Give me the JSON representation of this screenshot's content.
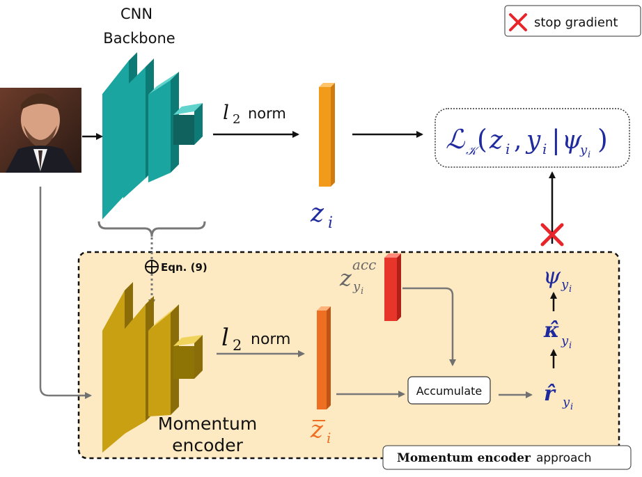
{
  "legend": {
    "label": "stop gradient"
  },
  "cnn": {
    "title_line1": "CNN",
    "title_line2": "Backbone"
  },
  "top_branch": {
    "norm_l": "l",
    "norm_sub": "2",
    "norm_word": "norm",
    "z_main": "z",
    "z_sub": "i"
  },
  "loss": {
    "script_L": "ℒ",
    "script_K": "𝒦",
    "open": "(",
    "z": "z",
    "z_sub": "i",
    "comma": ",",
    "y": "y",
    "y_sub": "i",
    "bar": "|",
    "psi": "ψ",
    "psi_sub_y": "y",
    "psi_sub_i": "i",
    "close": ")"
  },
  "eqn": {
    "label": "Eqn. (9)"
  },
  "momentum_branch": {
    "norm_l": "l",
    "norm_sub": "2",
    "norm_word": "norm",
    "zbar_main": "z",
    "zbar_sub": "i",
    "zacc_main": "z",
    "zacc_sup": "acc",
    "zacc_sub_y": "y",
    "zacc_sub_i": "i",
    "encoder_line1": "Momentum",
    "encoder_line2": "encoder",
    "accumulate": "Accumulate"
  },
  "right_column": {
    "psi": "ψ",
    "kappa": "κ̂",
    "r": "r̂",
    "sub_y": "y",
    "sub_i": "i"
  },
  "footer_tag": {
    "bold": "Momentum encoder",
    "normal": "approach"
  },
  "colors": {
    "cnn_teal": "#1aa5a0",
    "momentum_gold": "#c9a012",
    "z_orange": "#f29a1a",
    "zbar_orange": "#ee6f22",
    "zacc_red": "#e8352a",
    "panel_bg": "#fde9c2",
    "math_blue": "#1f2a9e",
    "stop_red": "#e8252a"
  }
}
